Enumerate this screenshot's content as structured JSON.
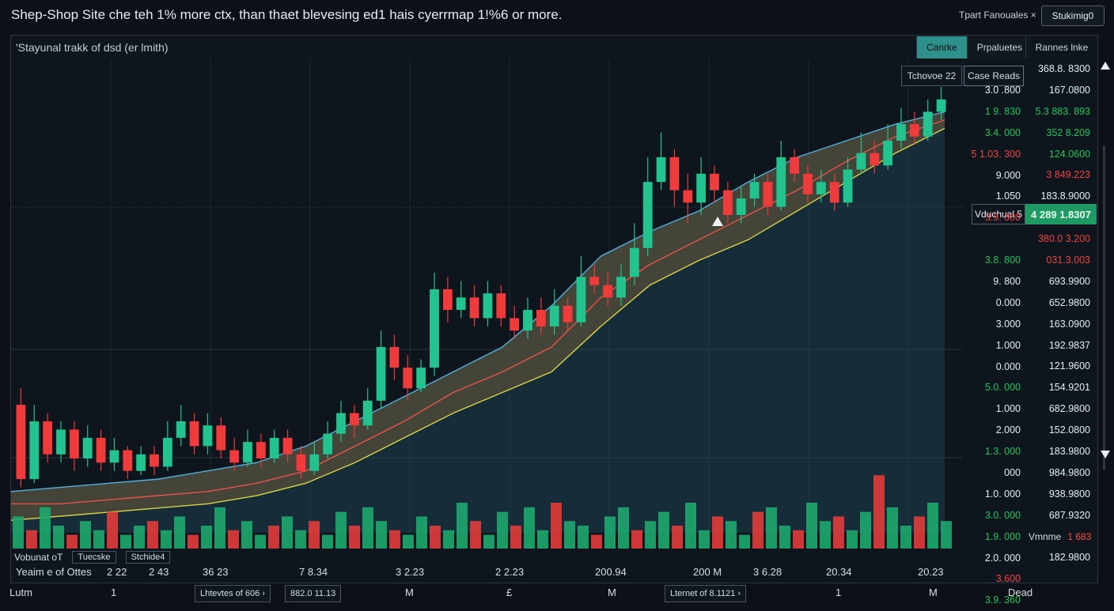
{
  "header": {
    "headline": "Shep-Shop Site che teh 1% more ctx, than thaet blevesing ed1 hais cyerrmap 1!%6 or more.",
    "right_label": "Tpart Fanouales ×",
    "right_button": "Stukimig0"
  },
  "panel": {
    "title": "'Stayunal trakk of dsd (er lmith)",
    "tabs": [
      "Canrke",
      "Prpaluetes"
    ],
    "column_header": "Rannes lnke",
    "tooltip_left": "Tchovoe 22",
    "tooltip_right": "Case Reads",
    "volume_tag": "Vduchual 5",
    "price_tag": "4 289 1.8307",
    "volume_label": "Vmnme",
    "volume_value": "1 683"
  },
  "axis_left": [
    {
      "text": "3.0 .800",
      "color": "#e6edf3"
    },
    {
      "text": "1 9. 830",
      "color": "#22c55e"
    },
    {
      "text": "3.4. 000",
      "color": "#22c55e"
    },
    {
      "text": "5 1.03. 300",
      "color": "#ef4444"
    },
    {
      "text": "9.000",
      "color": "#e6edf3"
    },
    {
      "text": "1.050",
      "color": "#e6edf3"
    },
    {
      "text": "3.9. 000",
      "color": "#ef4444"
    },
    {
      "text": "",
      "color": "#e6edf3"
    },
    {
      "text": "3.8. 800",
      "color": "#22c55e"
    },
    {
      "text": "9. 800",
      "color": "#e6edf3"
    },
    {
      "text": "0.000",
      "color": "#e6edf3"
    },
    {
      "text": "3.000",
      "color": "#e6edf3"
    },
    {
      "text": "1.000",
      "color": "#e6edf3"
    },
    {
      "text": "0.000",
      "color": "#e6edf3"
    },
    {
      "text": "5.0. 000",
      "color": "#22c55e"
    },
    {
      "text": "1.000",
      "color": "#e6edf3"
    },
    {
      "text": "2.000",
      "color": "#e6edf3"
    },
    {
      "text": "1.3. 000",
      "color": "#22c55e"
    },
    {
      "text": "000",
      "color": "#e6edf3"
    },
    {
      "text": "1.0. 000",
      "color": "#e6edf3"
    },
    {
      "text": "3.0. 000",
      "color": "#22c55e"
    },
    {
      "text": "1.9. 000",
      "color": "#22c55e"
    },
    {
      "text": "2.0. 000",
      "color": "#e6edf3"
    },
    {
      "text": "3.600",
      "color": "#ef4444"
    },
    {
      "text": "3.9. 360",
      "color": "#22c55e"
    }
  ],
  "axis_right": [
    {
      "text": "368.8. 8300",
      "color": "#e6edf3"
    },
    {
      "text": "167.0800",
      "color": "#e6edf3"
    },
    {
      "text": "5.3 883. 893",
      "color": "#22c55e"
    },
    {
      "text": "352 8.209",
      "color": "#22c55e"
    },
    {
      "text": "124.0600",
      "color": "#22c55e"
    },
    {
      "text": "3 849.223",
      "color": "#ef4444"
    },
    {
      "text": "183.8.9000",
      "color": "#e6edf3"
    },
    {
      "text": "",
      "color": "#e6edf3"
    },
    {
      "text": "380.0 3.200",
      "color": "#ef4444"
    },
    {
      "text": "031.3.003",
      "color": "#ef4444"
    },
    {
      "text": "693.9900",
      "color": "#e6edf3"
    },
    {
      "text": "652.9800",
      "color": "#e6edf3"
    },
    {
      "text": "163.0900",
      "color": "#e6edf3"
    },
    {
      "text": "192.9837",
      "color": "#e6edf3"
    },
    {
      "text": "121.9600",
      "color": "#e6edf3"
    },
    {
      "text": "154.9201",
      "color": "#e6edf3"
    },
    {
      "text": "682.9800",
      "color": "#e6edf3"
    },
    {
      "text": "152.0800",
      "color": "#e6edf3"
    },
    {
      "text": "183.9800",
      "color": "#e6edf3"
    },
    {
      "text": "984.9800",
      "color": "#e6edf3"
    },
    {
      "text": "938.9800",
      "color": "#e6edf3"
    },
    {
      "text": "687.9320",
      "color": "#e6edf3"
    },
    {
      "text": "",
      "color": "#e6edf3"
    },
    {
      "text": "182.9800",
      "color": "#e6edf3"
    }
  ],
  "legend": {
    "series1": "Vobunat oT",
    "box1": "Tuecske",
    "box2": "Stchide4"
  },
  "bottom_labels": [
    "Yeaim e of Ottes",
    "2 22",
    "2 43",
    "36 23",
    "7 8.34",
    "3 2.23",
    "2 2.23",
    "200.94",
    "200 M",
    "3 6.28",
    "20.34",
    "20.23"
  ],
  "footer": {
    "left": "Lutm",
    "items": [
      "1",
      "M",
      "£",
      "M",
      "1",
      "M"
    ],
    "box1": "Lhtevtes of 606 ›",
    "box2": "882.0 11.13",
    "box3": "Lternet of 8.1121 ›",
    "right": "Dead"
  },
  "colors": {
    "up": "#22c38e",
    "down": "#ef3b3b",
    "ma_blue": "#4fb3e0",
    "ma_red": "#e8534a",
    "ma_yellow": "#d6d34a",
    "fill": "#1f4a5c"
  },
  "chart_data": {
    "type": "candlestick",
    "title": "'Stayunal trakk of dsd (er lmith)",
    "candles": [
      {
        "o": 0.26,
        "c": 0.08,
        "h": 0.3,
        "l": 0.06
      },
      {
        "o": 0.08,
        "c": 0.22,
        "h": 0.26,
        "l": 0.07
      },
      {
        "o": 0.22,
        "c": 0.14,
        "h": 0.24,
        "l": 0.12
      },
      {
        "o": 0.14,
        "c": 0.2,
        "h": 0.22,
        "l": 0.12
      },
      {
        "o": 0.2,
        "c": 0.13,
        "h": 0.22,
        "l": 0.1
      },
      {
        "o": 0.13,
        "c": 0.18,
        "h": 0.21,
        "l": 0.11
      },
      {
        "o": 0.18,
        "c": 0.12,
        "h": 0.2,
        "l": 0.1
      },
      {
        "o": 0.12,
        "c": 0.15,
        "h": 0.18,
        "l": 0.1
      },
      {
        "o": 0.15,
        "c": 0.1,
        "h": 0.16,
        "l": 0.08
      },
      {
        "o": 0.1,
        "c": 0.14,
        "h": 0.16,
        "l": 0.09
      },
      {
        "o": 0.14,
        "c": 0.11,
        "h": 0.16,
        "l": 0.09
      },
      {
        "o": 0.11,
        "c": 0.18,
        "h": 0.22,
        "l": 0.1
      },
      {
        "o": 0.18,
        "c": 0.22,
        "h": 0.26,
        "l": 0.16
      },
      {
        "o": 0.22,
        "c": 0.16,
        "h": 0.24,
        "l": 0.14
      },
      {
        "o": 0.16,
        "c": 0.21,
        "h": 0.24,
        "l": 0.14
      },
      {
        "o": 0.21,
        "c": 0.15,
        "h": 0.23,
        "l": 0.13
      },
      {
        "o": 0.15,
        "c": 0.12,
        "h": 0.18,
        "l": 0.1
      },
      {
        "o": 0.12,
        "c": 0.17,
        "h": 0.2,
        "l": 0.11
      },
      {
        "o": 0.17,
        "c": 0.13,
        "h": 0.19,
        "l": 0.11
      },
      {
        "o": 0.13,
        "c": 0.18,
        "h": 0.2,
        "l": 0.12
      },
      {
        "o": 0.18,
        "c": 0.14,
        "h": 0.2,
        "l": 0.12
      },
      {
        "o": 0.14,
        "c": 0.1,
        "h": 0.16,
        "l": 0.08
      },
      {
        "o": 0.1,
        "c": 0.14,
        "h": 0.17,
        "l": 0.09
      },
      {
        "o": 0.14,
        "c": 0.19,
        "h": 0.22,
        "l": 0.13
      },
      {
        "o": 0.19,
        "c": 0.24,
        "h": 0.27,
        "l": 0.17
      },
      {
        "o": 0.24,
        "c": 0.21,
        "h": 0.26,
        "l": 0.18
      },
      {
        "o": 0.21,
        "c": 0.27,
        "h": 0.3,
        "l": 0.2
      },
      {
        "o": 0.27,
        "c": 0.4,
        "h": 0.44,
        "l": 0.25
      },
      {
        "o": 0.4,
        "c": 0.35,
        "h": 0.43,
        "l": 0.32
      },
      {
        "o": 0.35,
        "c": 0.3,
        "h": 0.38,
        "l": 0.27
      },
      {
        "o": 0.3,
        "c": 0.35,
        "h": 0.37,
        "l": 0.29
      },
      {
        "o": 0.35,
        "c": 0.54,
        "h": 0.58,
        "l": 0.33
      },
      {
        "o": 0.54,
        "c": 0.49,
        "h": 0.57,
        "l": 0.46
      },
      {
        "o": 0.49,
        "c": 0.52,
        "h": 0.56,
        "l": 0.47
      },
      {
        "o": 0.52,
        "c": 0.47,
        "h": 0.55,
        "l": 0.45
      },
      {
        "o": 0.47,
        "c": 0.53,
        "h": 0.56,
        "l": 0.45
      },
      {
        "o": 0.53,
        "c": 0.47,
        "h": 0.55,
        "l": 0.45
      },
      {
        "o": 0.47,
        "c": 0.44,
        "h": 0.5,
        "l": 0.42
      },
      {
        "o": 0.44,
        "c": 0.49,
        "h": 0.52,
        "l": 0.42
      },
      {
        "o": 0.49,
        "c": 0.45,
        "h": 0.52,
        "l": 0.43
      },
      {
        "o": 0.45,
        "c": 0.5,
        "h": 0.54,
        "l": 0.43
      },
      {
        "o": 0.5,
        "c": 0.46,
        "h": 0.52,
        "l": 0.44
      },
      {
        "o": 0.46,
        "c": 0.57,
        "h": 0.62,
        "l": 0.45
      },
      {
        "o": 0.57,
        "c": 0.55,
        "h": 0.6,
        "l": 0.53
      },
      {
        "o": 0.55,
        "c": 0.52,
        "h": 0.58,
        "l": 0.5
      },
      {
        "o": 0.52,
        "c": 0.57,
        "h": 0.6,
        "l": 0.5
      },
      {
        "o": 0.57,
        "c": 0.64,
        "h": 0.7,
        "l": 0.55
      },
      {
        "o": 0.64,
        "c": 0.8,
        "h": 0.86,
        "l": 0.62
      },
      {
        "o": 0.8,
        "c": 0.86,
        "h": 0.92,
        "l": 0.78
      },
      {
        "o": 0.86,
        "c": 0.78,
        "h": 0.88,
        "l": 0.74
      },
      {
        "o": 0.78,
        "c": 0.75,
        "h": 0.82,
        "l": 0.7
      },
      {
        "o": 0.75,
        "c": 0.82,
        "h": 0.86,
        "l": 0.72
      },
      {
        "o": 0.82,
        "c": 0.78,
        "h": 0.84,
        "l": 0.75
      },
      {
        "o": 0.78,
        "c": 0.72,
        "h": 0.8,
        "l": 0.7
      },
      {
        "o": 0.72,
        "c": 0.76,
        "h": 0.79,
        "l": 0.7
      },
      {
        "o": 0.76,
        "c": 0.8,
        "h": 0.82,
        "l": 0.74
      },
      {
        "o": 0.8,
        "c": 0.74,
        "h": 0.82,
        "l": 0.72
      },
      {
        "o": 0.74,
        "c": 0.86,
        "h": 0.9,
        "l": 0.73
      },
      {
        "o": 0.86,
        "c": 0.82,
        "h": 0.88,
        "l": 0.8
      },
      {
        "o": 0.82,
        "c": 0.77,
        "h": 0.84,
        "l": 0.75
      },
      {
        "o": 0.77,
        "c": 0.8,
        "h": 0.83,
        "l": 0.75
      },
      {
        "o": 0.8,
        "c": 0.75,
        "h": 0.82,
        "l": 0.73
      },
      {
        "o": 0.75,
        "c": 0.83,
        "h": 0.86,
        "l": 0.74
      },
      {
        "o": 0.83,
        "c": 0.87,
        "h": 0.92,
        "l": 0.82
      },
      {
        "o": 0.87,
        "c": 0.84,
        "h": 0.9,
        "l": 0.82
      },
      {
        "o": 0.84,
        "c": 0.9,
        "h": 0.94,
        "l": 0.83
      },
      {
        "o": 0.9,
        "c": 0.94,
        "h": 0.98,
        "l": 0.88
      },
      {
        "o": 0.94,
        "c": 0.91,
        "h": 0.97,
        "l": 0.89
      },
      {
        "o": 0.91,
        "c": 0.97,
        "h": 1.0,
        "l": 0.9
      },
      {
        "o": 0.97,
        "c": 1.0,
        "h": 1.03,
        "l": 0.95
      }
    ],
    "volume": [
      0.7,
      0.4,
      0.9,
      0.5,
      0.3,
      0.6,
      0.4,
      0.8,
      0.3,
      0.5,
      0.6,
      0.4,
      0.7,
      0.3,
      0.5,
      0.9,
      0.4,
      0.6,
      0.3,
      0.5,
      0.7,
      0.4,
      0.6,
      0.3,
      0.8,
      0.5,
      0.9,
      0.6,
      0.4,
      0.3,
      0.7,
      0.5,
      0.4,
      1.0,
      0.6,
      0.3,
      0.8,
      0.5,
      0.9,
      0.4,
      1.0,
      0.6,
      0.5,
      0.3,
      0.7,
      0.9,
      0.4,
      0.6,
      0.8,
      0.5,
      1.0,
      0.4,
      0.7,
      0.6,
      0.3,
      0.8,
      0.9,
      0.5,
      0.4,
      1.0,
      0.6,
      0.7,
      0.4,
      0.8,
      1.6,
      0.9,
      0.5,
      0.7,
      1.0,
      0.6
    ],
    "ma_blue": [
      0.05,
      0.06,
      0.07,
      0.08,
      0.1,
      0.12,
      0.16,
      0.22,
      0.28,
      0.34,
      0.4,
      0.5,
      0.62,
      0.68,
      0.73,
      0.8,
      0.86,
      0.9,
      0.94,
      0.97
    ],
    "ma_red": [
      0.02,
      0.02,
      0.03,
      0.04,
      0.05,
      0.07,
      0.1,
      0.16,
      0.22,
      0.29,
      0.34,
      0.4,
      0.52,
      0.6,
      0.66,
      0.72,
      0.78,
      0.85,
      0.91,
      0.95
    ],
    "ma_yellow": [
      -0.02,
      -0.01,
      0.0,
      0.01,
      0.02,
      0.04,
      0.07,
      0.12,
      0.18,
      0.24,
      0.29,
      0.34,
      0.45,
      0.55,
      0.61,
      0.66,
      0.73,
      0.8,
      0.87,
      0.93
    ],
    "ylim": [
      -0.05,
      1.08
    ]
  }
}
